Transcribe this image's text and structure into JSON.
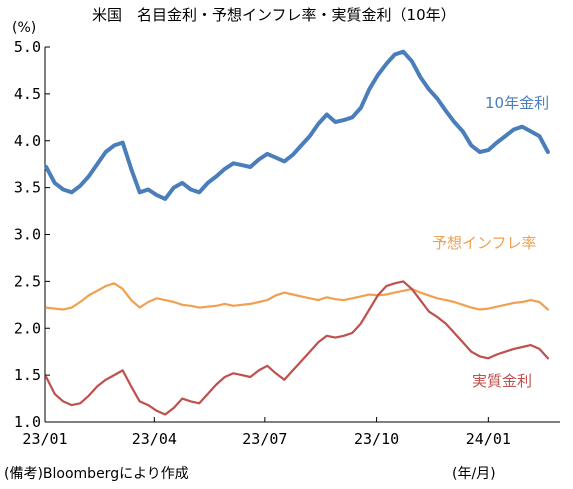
{
  "chart_data": {
    "type": "line",
    "title": "米国　名目金利・予想インフレ率・実質金利（10年）",
    "ylabel": "(%)",
    "xlabel": "(年/月)",
    "source": "(備考)Bloombergにより作成",
    "ylim": [
      1.0,
      5.0
    ],
    "yticks": [
      "1.0",
      "1.5",
      "2.0",
      "2.5",
      "3.0",
      "3.5",
      "4.0",
      "4.5",
      "5.0"
    ],
    "xticks": [
      "23/01",
      "23/04",
      "23/07",
      "23/10",
      "24/01"
    ],
    "x": [
      "23/01/02",
      "23/01/09",
      "23/01/16",
      "23/01/23",
      "23/01/30",
      "23/02/06",
      "23/02/13",
      "23/02/20",
      "23/02/27",
      "23/03/06",
      "23/03/13",
      "23/03/20",
      "23/03/27",
      "23/04/03",
      "23/04/10",
      "23/04/17",
      "23/04/24",
      "23/05/01",
      "23/05/08",
      "23/05/15",
      "23/05/22",
      "23/05/29",
      "23/06/05",
      "23/06/12",
      "23/06/19",
      "23/06/26",
      "23/07/03",
      "23/07/10",
      "23/07/17",
      "23/07/24",
      "23/07/31",
      "23/08/07",
      "23/08/14",
      "23/08/21",
      "23/08/28",
      "23/09/04",
      "23/09/11",
      "23/09/18",
      "23/09/25",
      "23/10/02",
      "23/10/09",
      "23/10/16",
      "23/10/23",
      "23/10/30",
      "23/11/06",
      "23/11/13",
      "23/11/20",
      "23/11/27",
      "23/12/04",
      "23/12/11",
      "23/12/18",
      "23/12/25",
      "24/01/01",
      "24/01/08",
      "24/01/15",
      "24/01/22",
      "24/01/29",
      "24/02/05",
      "24/02/12",
      "24/02/19"
    ],
    "grid": false,
    "legend": "inline labels",
    "series": [
      {
        "name": "10年金利",
        "color": "#4a7ebb",
        "values": [
          3.72,
          3.55,
          3.48,
          3.45,
          3.52,
          3.62,
          3.75,
          3.88,
          3.95,
          3.98,
          3.7,
          3.45,
          3.48,
          3.42,
          3.38,
          3.5,
          3.55,
          3.48,
          3.45,
          3.55,
          3.62,
          3.7,
          3.76,
          3.74,
          3.72,
          3.8,
          3.86,
          3.82,
          3.78,
          3.85,
          3.95,
          4.05,
          4.18,
          4.28,
          4.2,
          4.22,
          4.25,
          4.35,
          4.55,
          4.7,
          4.82,
          4.92,
          4.95,
          4.85,
          4.68,
          4.55,
          4.45,
          4.32,
          4.2,
          4.1,
          3.95,
          3.88,
          3.9,
          3.98,
          4.05,
          4.12,
          4.15,
          4.1,
          4.05,
          3.88
        ]
      },
      {
        "name": "予想インフレ率",
        "color": "#f0a050",
        "values": [
          2.22,
          2.21,
          2.2,
          2.22,
          2.28,
          2.35,
          2.4,
          2.45,
          2.48,
          2.42,
          2.3,
          2.22,
          2.28,
          2.32,
          2.3,
          2.28,
          2.25,
          2.24,
          2.22,
          2.23,
          2.24,
          2.26,
          2.24,
          2.25,
          2.26,
          2.28,
          2.3,
          2.35,
          2.38,
          2.36,
          2.34,
          2.32,
          2.3,
          2.33,
          2.31,
          2.3,
          2.32,
          2.34,
          2.36,
          2.35,
          2.36,
          2.38,
          2.4,
          2.42,
          2.38,
          2.35,
          2.32,
          2.3,
          2.28,
          2.25,
          2.22,
          2.2,
          2.21,
          2.23,
          2.25,
          2.27,
          2.28,
          2.3,
          2.28,
          2.2
        ]
      },
      {
        "name": "実質金利",
        "color": "#c0504d",
        "values": [
          1.48,
          1.3,
          1.22,
          1.18,
          1.2,
          1.28,
          1.38,
          1.45,
          1.5,
          1.55,
          1.38,
          1.22,
          1.18,
          1.12,
          1.08,
          1.15,
          1.25,
          1.22,
          1.2,
          1.3,
          1.4,
          1.48,
          1.52,
          1.5,
          1.48,
          1.55,
          1.6,
          1.52,
          1.45,
          1.55,
          1.65,
          1.75,
          1.85,
          1.92,
          1.9,
          1.92,
          1.95,
          2.05,
          2.2,
          2.35,
          2.45,
          2.48,
          2.5,
          2.42,
          2.3,
          2.18,
          2.12,
          2.05,
          1.95,
          1.85,
          1.75,
          1.7,
          1.68,
          1.72,
          1.75,
          1.78,
          1.8,
          1.82,
          1.78,
          1.68
        ]
      }
    ]
  }
}
